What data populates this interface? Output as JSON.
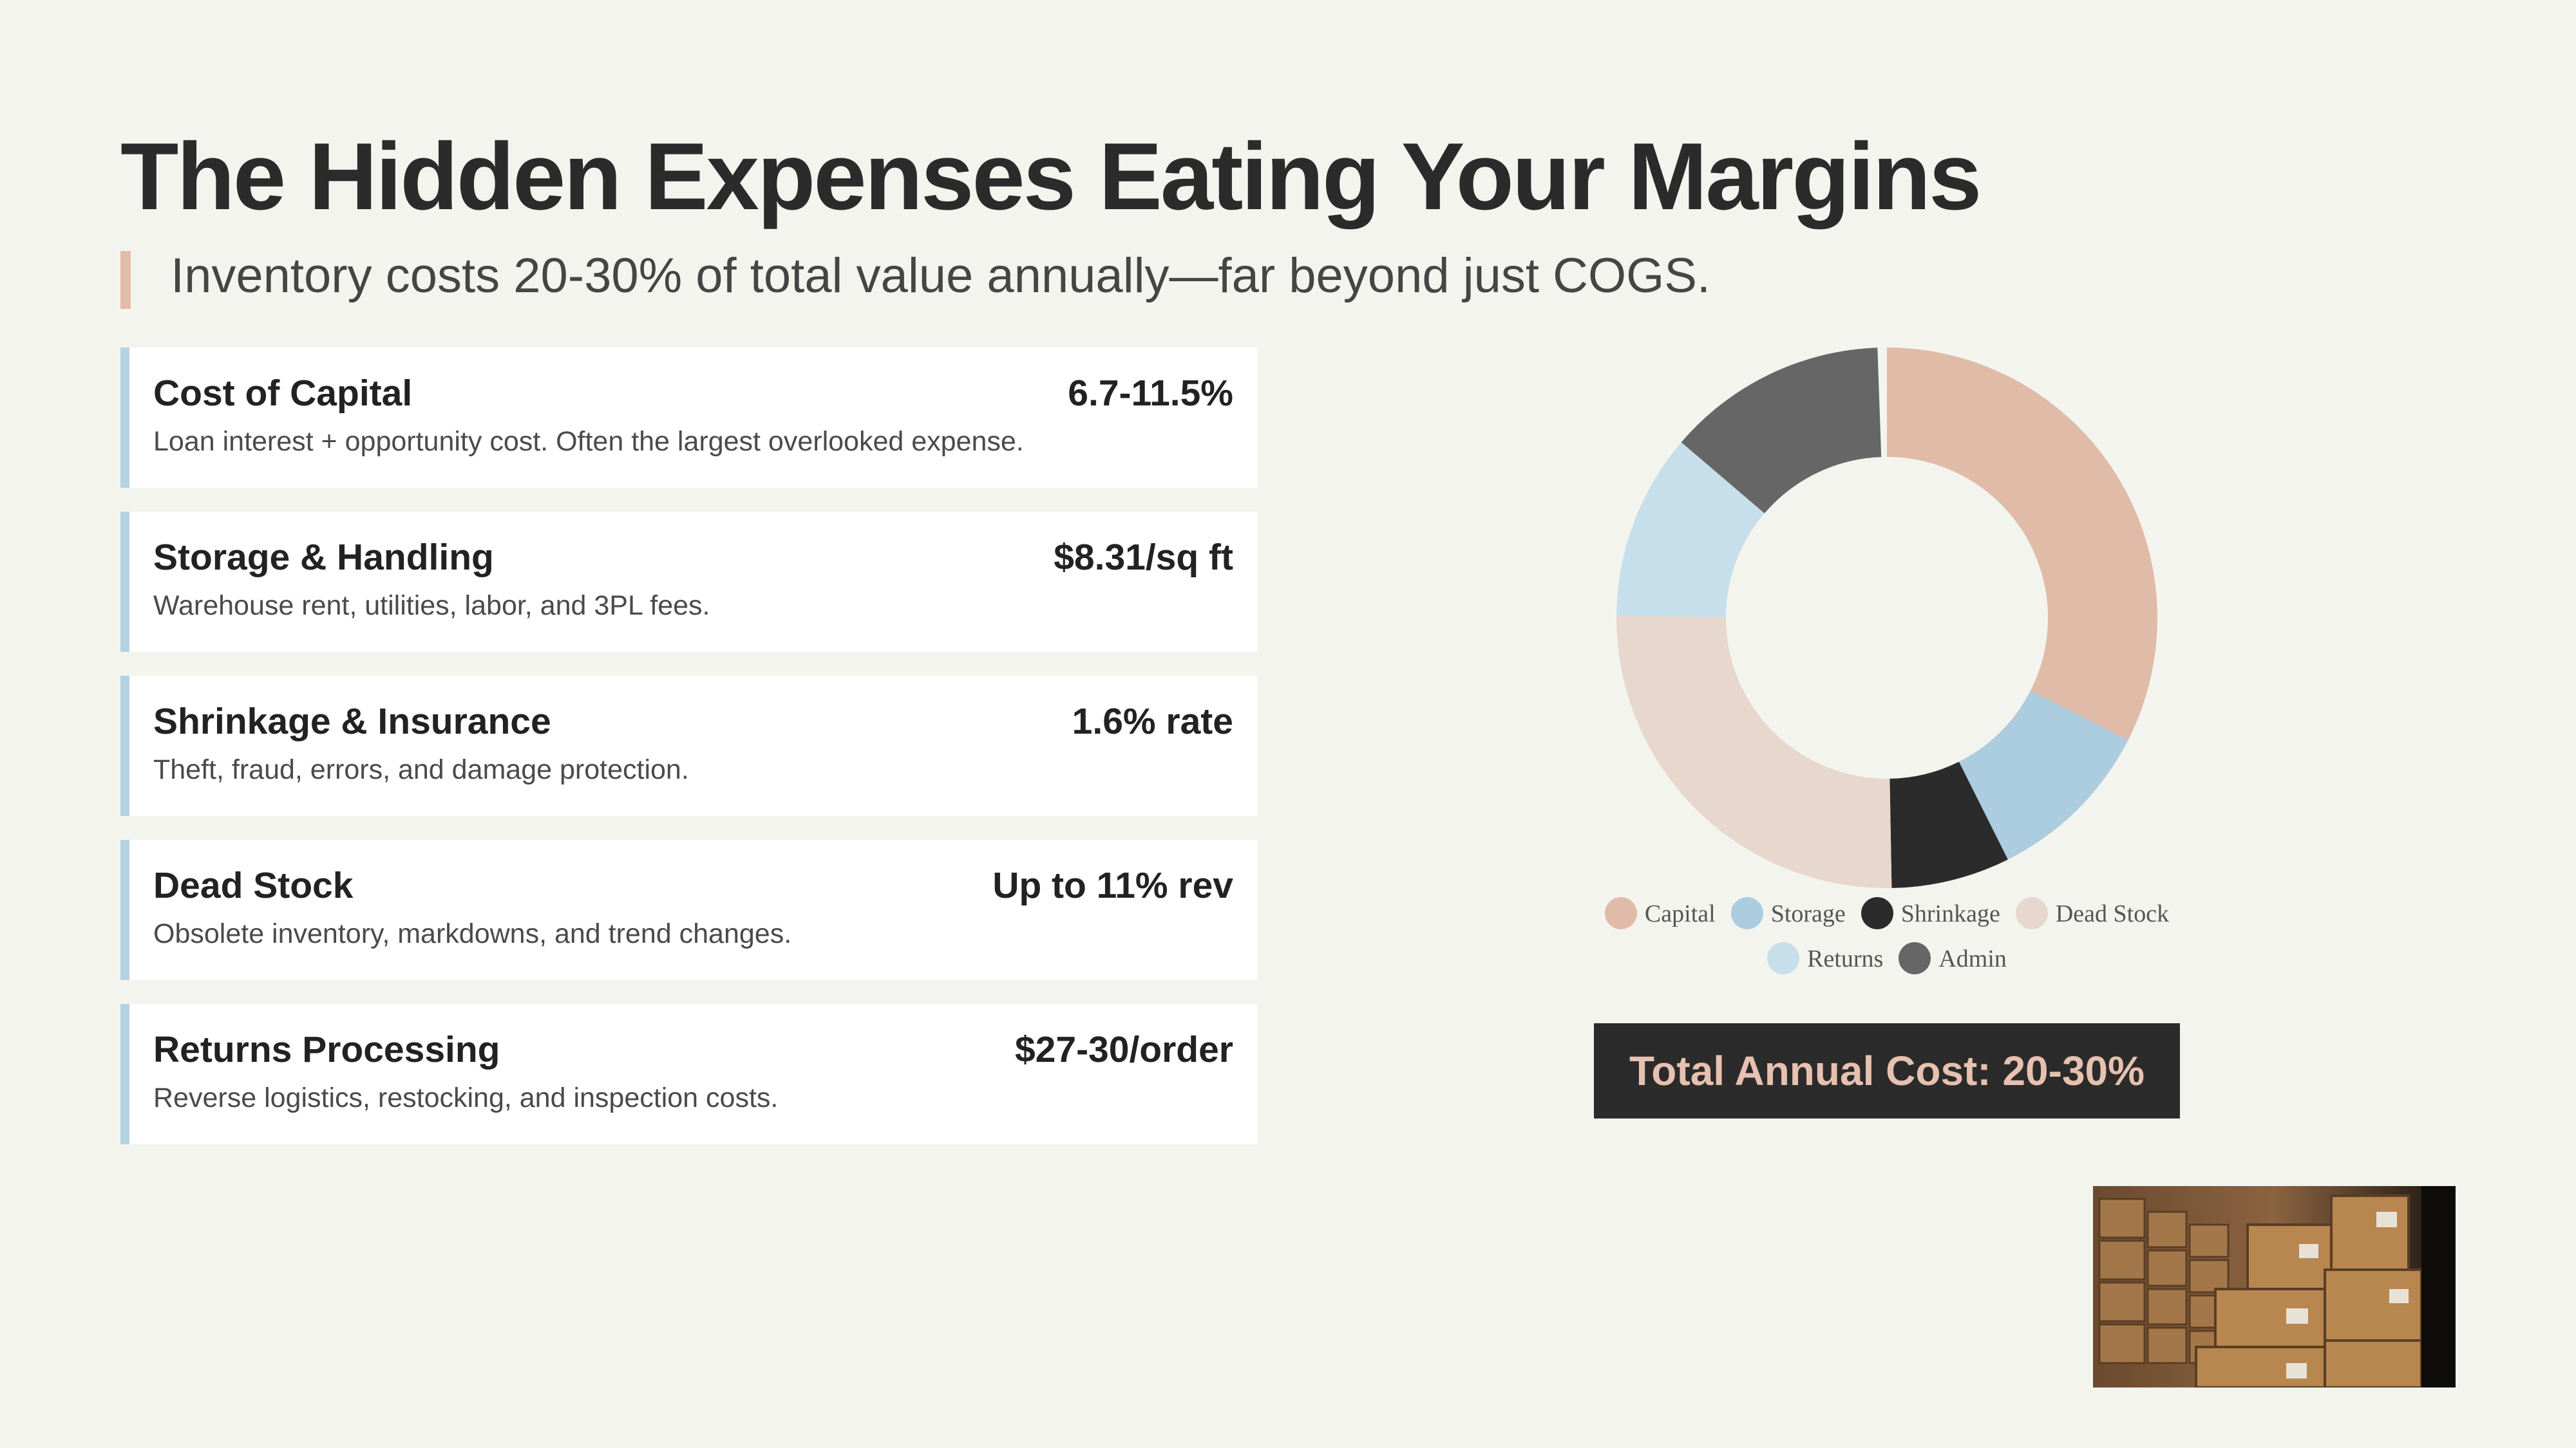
{
  "slide": {
    "title": "The Hidden Expenses Eating Your Margins",
    "subtitle": "Inventory costs 20-30% of total value annually—far beyond just COGS."
  },
  "cards": [
    {
      "title": "Cost of Capital",
      "value": "6.7-11.5%",
      "desc": "Loan interest + opportunity cost. Often the largest overlooked expense."
    },
    {
      "title": "Storage & Handling",
      "value": "$8.31/sq ft",
      "desc": "Warehouse rent, utilities, labor, and 3PL fees."
    },
    {
      "title": "Shrinkage & Insurance",
      "value": "1.6% rate",
      "desc": "Theft, fraud, errors, and damage protection."
    },
    {
      "title": "Dead Stock",
      "value": "Up to 11% rev",
      "desc": "Obsolete inventory, markdowns, and trend changes."
    },
    {
      "title": "Returns Processing",
      "value": "$27-30/order",
      "desc": "Reverse logistics, restocking, and inspection costs."
    }
  ],
  "total": {
    "label": "Total Annual Cost: 20-30%"
  },
  "chart_data": {
    "type": "pie",
    "donut": true,
    "categories": [
      "Capital",
      "Storage",
      "Shrinkage",
      "Dead Stock",
      "Returns",
      "Admin"
    ],
    "values": [
      32,
      10,
      7,
      25,
      11,
      13
    ],
    "colors": [
      "#e0bba8",
      "#acccdf",
      "#2b2b2b",
      "#e7d7cc",
      "#c6dfeb",
      "#666666"
    ],
    "legend": "bottom"
  },
  "photo": {
    "icon": "warehouse-boxes-photo"
  }
}
